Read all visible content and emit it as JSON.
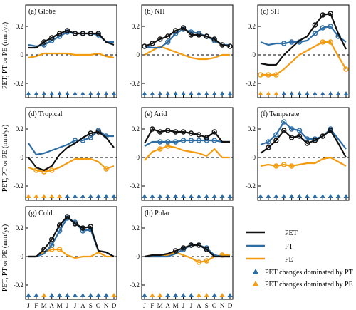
{
  "y_axis_label": "PET, PT or PE (mm/yr)",
  "months": [
    "J",
    "F",
    "M",
    "A",
    "M",
    "J",
    "J",
    "A",
    "S",
    "O",
    "N",
    "D"
  ],
  "colors": {
    "PET": "#111111",
    "PT": "#2e6da4",
    "PE": "#f39c12",
    "zero_line": "#000000"
  },
  "legend": {
    "pet": "PET",
    "pt": "PT",
    "pe": "PE",
    "tri_pt": "PET changes dominated by PT",
    "tri_pe": "PET changes dominated by PE"
  },
  "chart_data": [
    {
      "type": "line",
      "title": "(a) Globe",
      "ylim": [
        -0.3,
        0.35
      ],
      "yticks": [
        -0.2,
        0,
        0.2
      ],
      "series": [
        {
          "name": "PET",
          "values": [
            0.05,
            0.05,
            0.09,
            0.12,
            0.15,
            0.17,
            0.15,
            0.15,
            0.15,
            0.15,
            0.09,
            0.07
          ],
          "markers": [
            false,
            false,
            true,
            true,
            true,
            true,
            true,
            true,
            true,
            true,
            false,
            false
          ]
        },
        {
          "name": "PT",
          "values": [
            0.07,
            0.06,
            0.07,
            0.1,
            0.13,
            0.16,
            0.15,
            0.15,
            0.15,
            0.14,
            0.09,
            0.09
          ],
          "markers": [
            false,
            false,
            true,
            true,
            true,
            true,
            true,
            true,
            true,
            true,
            false,
            false
          ]
        },
        {
          "name": "PE",
          "values": [
            -0.02,
            -0.01,
            0.01,
            0.01,
            0.01,
            0.01,
            0.0,
            0.0,
            0.0,
            0.01,
            -0.01,
            -0.02
          ],
          "markers": [
            false,
            false,
            false,
            false,
            false,
            false,
            false,
            false,
            false,
            false,
            false,
            false
          ]
        }
      ],
      "triangles": [
        "PT",
        "PT",
        "PT",
        "PT",
        "PT",
        "PT",
        "PT",
        "PT",
        "PT",
        "PT",
        "PT",
        "PT"
      ]
    },
    {
      "type": "line",
      "title": "(b) NH",
      "ylim": [
        -0.3,
        0.35
      ],
      "yticks": [
        -0.2,
        0,
        0.2
      ],
      "series": [
        {
          "name": "PET",
          "values": [
            0.06,
            0.08,
            0.11,
            0.13,
            0.17,
            0.19,
            0.14,
            0.14,
            0.13,
            0.11,
            0.07,
            0.06
          ],
          "markers": [
            true,
            true,
            true,
            true,
            true,
            true,
            true,
            true,
            true,
            true,
            true,
            true
          ]
        },
        {
          "name": "PT",
          "values": [
            0.06,
            0.05,
            0.05,
            0.09,
            0.15,
            0.18,
            0.16,
            0.15,
            0.13,
            0.1,
            0.07,
            0.07
          ],
          "markers": [
            false,
            false,
            false,
            true,
            true,
            true,
            true,
            true,
            true,
            true,
            false,
            false
          ]
        },
        {
          "name": "PE",
          "values": [
            0.0,
            0.03,
            0.06,
            0.04,
            0.02,
            0.0,
            -0.02,
            -0.03,
            -0.03,
            -0.02,
            0.0,
            0.0
          ],
          "markers": [
            false,
            false,
            false,
            false,
            false,
            false,
            false,
            false,
            false,
            false,
            false,
            false
          ]
        }
      ],
      "triangles": [
        "PT",
        "PT",
        "PT",
        "PT",
        "PT",
        "PT",
        "PT",
        "PT",
        "PT",
        "PT",
        "PT",
        "PT"
      ]
    },
    {
      "type": "line",
      "title": "(c) SH",
      "ylim": [
        -0.3,
        0.35
      ],
      "yticks": [
        -0.2,
        0,
        0.2
      ],
      "series": [
        {
          "name": "PET",
          "values": [
            -0.06,
            -0.07,
            -0.07,
            0.0,
            0.05,
            0.1,
            0.13,
            0.21,
            0.28,
            0.29,
            0.15,
            0.04
          ],
          "markers": [
            false,
            false,
            false,
            false,
            false,
            false,
            false,
            true,
            true,
            true,
            false,
            false
          ]
        },
        {
          "name": "PT",
          "values": [
            0.09,
            0.07,
            0.08,
            0.08,
            0.09,
            0.09,
            0.1,
            0.15,
            0.19,
            0.2,
            0.13,
            0.09
          ],
          "markers": [
            false,
            false,
            false,
            true,
            true,
            true,
            false,
            true,
            true,
            true,
            true,
            false
          ]
        },
        {
          "name": "PE",
          "values": [
            -0.14,
            -0.14,
            -0.14,
            -0.1,
            -0.05,
            0.0,
            0.03,
            0.06,
            0.09,
            0.09,
            -0.01,
            -0.1
          ],
          "markers": [
            true,
            true,
            true,
            false,
            false,
            false,
            false,
            false,
            true,
            true,
            false,
            true
          ]
        }
      ],
      "triangles": [
        "PE",
        "PE",
        "PE",
        "PT",
        "PT",
        "PT",
        "PT",
        "PT",
        "PT",
        "PT",
        "PT",
        "PT"
      ]
    },
    {
      "type": "line",
      "title": "(d) Tropical",
      "ylim": [
        -0.3,
        0.35
      ],
      "yticks": [
        -0.2,
        0,
        0.2
      ],
      "series": [
        {
          "name": "PET",
          "values": [
            0.0,
            -0.07,
            -0.09,
            -0.06,
            0.02,
            0.07,
            0.1,
            0.14,
            0.17,
            0.18,
            0.14,
            0.07
          ],
          "markers": [
            false,
            false,
            false,
            false,
            false,
            false,
            false,
            false,
            true,
            true,
            false,
            false
          ]
        },
        {
          "name": "PT",
          "values": [
            0.1,
            0.02,
            0.03,
            0.05,
            0.07,
            0.09,
            0.12,
            0.12,
            0.14,
            0.19,
            0.15,
            0.15
          ],
          "markers": [
            false,
            false,
            false,
            false,
            false,
            false,
            true,
            true,
            true,
            true,
            true,
            false
          ]
        },
        {
          "name": "PE",
          "values": [
            -0.07,
            -0.09,
            -0.1,
            -0.09,
            -0.07,
            -0.04,
            -0.01,
            -0.01,
            -0.01,
            -0.03,
            -0.08,
            -0.06
          ],
          "markers": [
            false,
            true,
            true,
            true,
            false,
            false,
            false,
            false,
            false,
            false,
            true,
            false
          ]
        }
      ],
      "triangles": [
        "PE",
        "PE",
        "PE",
        "PE",
        "PE",
        "PT",
        "PT",
        "PT",
        "PT",
        "PT",
        "PT",
        "PT"
      ]
    },
    {
      "type": "line",
      "title": "(e) Arid",
      "ylim": [
        -0.3,
        0.35
      ],
      "yticks": [
        -0.2,
        0,
        0.2
      ],
      "series": [
        {
          "name": "PET",
          "values": [
            0.1,
            0.2,
            0.18,
            0.19,
            0.18,
            0.18,
            0.17,
            0.16,
            0.14,
            0.18,
            0.11,
            0.11
          ],
          "markers": [
            false,
            true,
            true,
            true,
            true,
            true,
            true,
            true,
            true,
            true,
            false,
            false
          ]
        },
        {
          "name": "PT",
          "values": [
            0.08,
            0.11,
            0.11,
            0.11,
            0.11,
            0.12,
            0.12,
            0.12,
            0.12,
            0.12,
            0.11,
            0.11
          ],
          "markers": [
            false,
            false,
            true,
            true,
            true,
            true,
            true,
            true,
            true,
            true,
            false,
            false
          ]
        },
        {
          "name": "PE",
          "values": [
            -0.02,
            0.04,
            0.06,
            0.08,
            0.07,
            0.05,
            0.04,
            0.03,
            0.01,
            0.06,
            0.0,
            0.0
          ],
          "markers": [
            false,
            false,
            true,
            true,
            false,
            false,
            false,
            false,
            false,
            false,
            false,
            false
          ]
        }
      ],
      "triangles": [
        "PT",
        "PT",
        "PT",
        "PT",
        "PT",
        "PT",
        "PT",
        "PT",
        "PT",
        "PT",
        "PT",
        "PT"
      ]
    },
    {
      "type": "line",
      "title": "(f) Temperate",
      "ylim": [
        -0.3,
        0.35
      ],
      "yticks": [
        -0.2,
        0,
        0.2
      ],
      "series": [
        {
          "name": "PET",
          "values": [
            0.03,
            0.07,
            0.12,
            0.19,
            0.14,
            0.15,
            0.1,
            0.12,
            0.15,
            0.19,
            0.1,
            0.0
          ],
          "markers": [
            false,
            true,
            true,
            true,
            true,
            true,
            true,
            true,
            true,
            true,
            false,
            false
          ]
        },
        {
          "name": "PT",
          "values": [
            0.09,
            0.11,
            0.16,
            0.25,
            0.2,
            0.19,
            0.13,
            0.13,
            0.15,
            0.2,
            0.13,
            0.06
          ],
          "markers": [
            false,
            true,
            true,
            true,
            true,
            true,
            true,
            true,
            true,
            true,
            false,
            false
          ]
        },
        {
          "name": "PE",
          "values": [
            -0.06,
            -0.05,
            -0.06,
            -0.05,
            -0.06,
            -0.05,
            -0.04,
            -0.04,
            -0.01,
            0.0,
            -0.03,
            -0.06
          ],
          "markers": [
            false,
            false,
            true,
            true,
            true,
            false,
            false,
            false,
            false,
            false,
            false,
            false
          ]
        }
      ],
      "triangles": [
        "PT",
        "PT",
        "PT",
        "PT",
        "PT",
        "PT",
        "PT",
        "PT",
        "PT",
        "PT",
        "PT",
        "PT"
      ]
    },
    {
      "type": "line",
      "title": "(g) Cold",
      "ylim": [
        -0.3,
        0.35
      ],
      "yticks": [
        -0.2,
        0,
        0.2
      ],
      "series": [
        {
          "name": "PET",
          "values": [
            0.0,
            0.0,
            0.05,
            0.12,
            0.22,
            0.28,
            0.23,
            0.2,
            0.21,
            0.04,
            0.03,
            0.0
          ],
          "markers": [
            false,
            false,
            true,
            true,
            true,
            true,
            true,
            true,
            true,
            false,
            false,
            false
          ]
        },
        {
          "name": "PT",
          "values": [
            0.0,
            0.0,
            0.02,
            0.08,
            0.18,
            0.27,
            0.24,
            0.18,
            0.19,
            0.04,
            0.03,
            0.0
          ],
          "markers": [
            false,
            false,
            false,
            true,
            true,
            true,
            true,
            true,
            true,
            false,
            false,
            false
          ]
        },
        {
          "name": "PE",
          "values": [
            0.0,
            0.0,
            0.03,
            0.05,
            0.05,
            0.01,
            -0.01,
            0.0,
            0.0,
            0.03,
            0.0,
            0.0
          ],
          "markers": [
            false,
            false,
            false,
            true,
            true,
            false,
            false,
            false,
            false,
            false,
            false,
            false
          ]
        }
      ],
      "triangles": [
        "PT",
        "PT",
        "PE",
        "PT",
        "PT",
        "PT",
        "PT",
        "PT",
        "PT",
        "PT",
        "PT",
        "PE"
      ]
    },
    {
      "type": "line",
      "title": "(h) Polar",
      "ylim": [
        -0.3,
        0.35
      ],
      "yticks": [
        -0.2,
        0,
        0.2
      ],
      "series": [
        {
          "name": "PET",
          "values": [
            0.0,
            0.01,
            0.01,
            0.02,
            0.04,
            0.06,
            0.08,
            0.08,
            0.05,
            0.0,
            0.0,
            0.0
          ],
          "markers": [
            false,
            false,
            false,
            false,
            true,
            true,
            true,
            true,
            true,
            false,
            false,
            false
          ]
        },
        {
          "name": "PT",
          "values": [
            0.0,
            0.0,
            0.0,
            0.0,
            0.02,
            0.05,
            0.08,
            0.08,
            0.06,
            0.01,
            0.0,
            0.0
          ],
          "markers": [
            false,
            false,
            false,
            false,
            false,
            true,
            true,
            true,
            true,
            false,
            false,
            false
          ]
        },
        {
          "name": "PE",
          "values": [
            0.0,
            0.0,
            0.0,
            0.01,
            0.03,
            0.01,
            -0.01,
            -0.04,
            -0.03,
            0.0,
            0.01,
            0.01
          ],
          "markers": [
            false,
            false,
            false,
            false,
            false,
            false,
            false,
            true,
            true,
            false,
            true,
            false
          ]
        }
      ],
      "triangles": [
        "PT",
        "PE",
        "PE",
        "PT",
        "PT",
        "PT",
        "PT",
        "PE",
        "PE",
        "PT",
        "PE",
        "PT"
      ]
    }
  ]
}
